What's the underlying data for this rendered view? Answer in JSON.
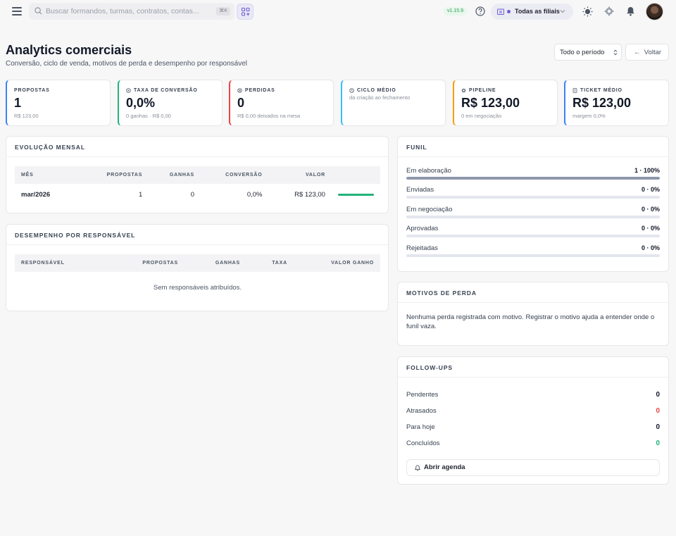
{
  "topbar": {
    "search_placeholder": "Buscar formandos, turmas, contratos, contas...",
    "search_shortcut": "⌘K",
    "version": "v1.15.9",
    "branch_label": "Todas as filiais"
  },
  "header": {
    "title": "Analytics comerciais",
    "subtitle": "Conversão, ciclo de venda, motivos de perda e desempenho por responsável",
    "period": "Todo o período",
    "back_label": "Voltar"
  },
  "kpis": [
    {
      "label": "PROPOSTAS",
      "value": "1",
      "sub": "R$ 123,00",
      "accent": "#3b82f6"
    },
    {
      "label": "TAXA DE CONVERSÃO",
      "value": "0,0%",
      "sub": "0 ganhas · R$ 0,00",
      "accent": "#22b37a"
    },
    {
      "label": "PERDIDAS",
      "value": "0",
      "sub": "R$ 0,00 deixados na mesa",
      "accent": "#ef4444"
    },
    {
      "label": "CICLO MÉDIO",
      "value": "",
      "sub": "da criação ao fechamento",
      "accent": "#38bdf8"
    },
    {
      "label": "PIPELINE",
      "value": "R$ 123,00",
      "sub": "0 em negociação",
      "accent": "#f59e0b"
    },
    {
      "label": "TICKET MÉDIO",
      "value": "R$ 123,00",
      "sub": "margem 0,0%",
      "accent": "#3b82f6"
    }
  ],
  "monthly": {
    "title": "EVOLUÇÃO MENSAL",
    "columns": [
      "MÊS",
      "PROPOSTAS",
      "GANHAS",
      "CONVERSÃO",
      "VALOR"
    ],
    "rows": [
      {
        "month": "mar/2026",
        "proposals": "1",
        "won": "0",
        "conversion": "0,0%",
        "value": "R$ 123,00",
        "bar_fraction": 1.0
      }
    ]
  },
  "performance": {
    "title": "DESEMPENHO POR RESPONSÁVEL",
    "columns": [
      "RESPONSÁVEL",
      "PROPOSTAS",
      "GANHAS",
      "TAXA",
      "VALOR GANHO"
    ],
    "empty": "Sem responsáveis atribuídos."
  },
  "funnel": {
    "title": "FUNIL",
    "stages": [
      {
        "label": "Em elaboração",
        "value": "1 · 100%",
        "fraction": 1.0
      },
      {
        "label": "Enviadas",
        "value": "0 · 0%",
        "fraction": 0
      },
      {
        "label": "Em negociação",
        "value": "0 · 0%",
        "fraction": 0
      },
      {
        "label": "Aprovadas",
        "value": "0 · 0%",
        "fraction": 0
      },
      {
        "label": "Rejeitadas",
        "value": "0 · 0%",
        "fraction": 0
      }
    ]
  },
  "loss_reasons": {
    "title": "MOTIVOS DE PERDA",
    "empty": "Nenhuma perda registrada com motivo. Registrar o motivo ajuda a entender onde o funil vaza."
  },
  "followups": {
    "title": "FOLLOW-UPS",
    "items": [
      {
        "label": "Pendentes",
        "value": "0",
        "color": "#111827"
      },
      {
        "label": "Atrasados",
        "value": "0",
        "color": "#ef4444"
      },
      {
        "label": "Para hoje",
        "value": "0",
        "color": "#111827"
      },
      {
        "label": "Concluídos",
        "value": "0",
        "color": "#22b37a"
      }
    ],
    "agenda_label": "Abrir agenda"
  }
}
